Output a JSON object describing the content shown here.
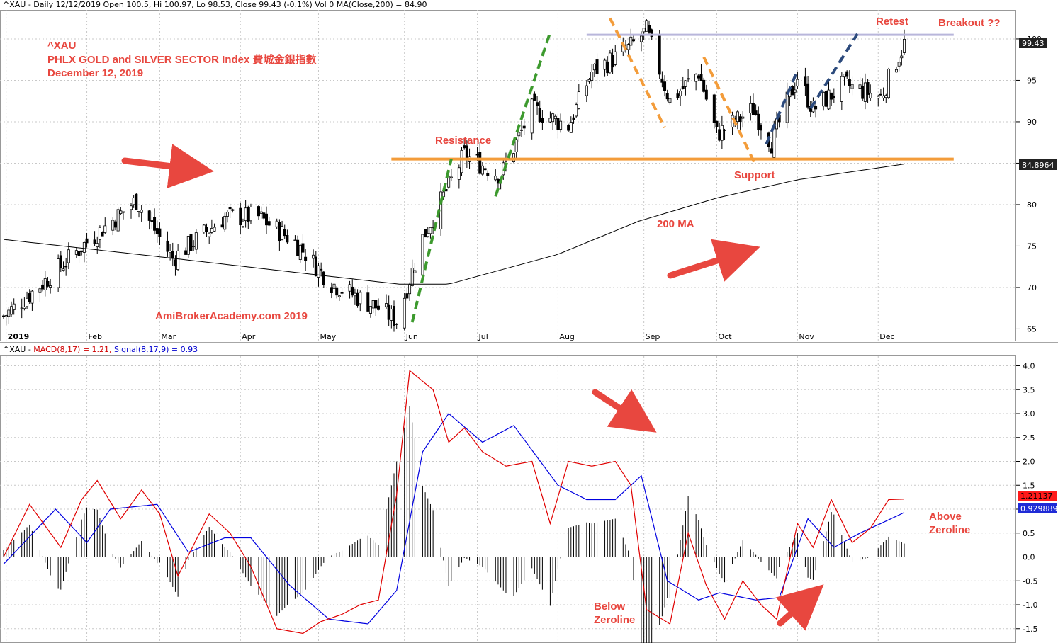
{
  "price_panel": {
    "header": "^XAU - Daily 12/12/2019 Open 100.5, Hi 100.97, Lo 98.53, Close 99.43 (-0.1%) Vol 0 MA(Close,200) = 84.90",
    "ticker": "^XAU",
    "index_name": "PHLX GOLD and SILVER SECTOR Index  費城金銀指數",
    "date": "December 12, 2019",
    "watermark": "AmiBrokerAcademy.com   2019",
    "last_close_label": "99.43",
    "ma_label": "84.8964"
  },
  "macd_panel": {
    "header_prefix": "^XAU - ",
    "header_macd": "MACD(8,17) = 1.21,",
    "header_signal": " Signal(8,17,9) = 0.93",
    "macd_label": "1.21137",
    "signal_label": "0.929889"
  },
  "annotations": {
    "resistance": "Resistance",
    "support": "Support",
    "ma200": "200 MA",
    "retest": "Retest",
    "breakout": "Breakout ??",
    "above_zeroline_1": "Above",
    "above_zeroline_2": "Zeroline",
    "below_zeroline_1": "Below",
    "below_zeroline_2": "Zeroline"
  },
  "colors": {
    "background": "#ffffff",
    "grid": "#c8c8c8",
    "annotation": "#e8473f",
    "resistance_line": "#f39c3a",
    "top_line": "#b9b6db",
    "green_trend": "#3d9a2e",
    "orange_trend": "#f39c3a",
    "navy_trend": "#2c4a7c",
    "macd": "#e00000",
    "signal": "#0000e0",
    "histogram": "#000000",
    "ma_line": "#000000"
  },
  "chart_data": [
    {
      "type": "candlestick",
      "title": "",
      "y_axis_ticks": [
        65,
        70,
        75,
        80,
        85,
        90,
        95,
        100
      ],
      "ylim": [
        63.5,
        103.5
      ],
      "x_axis_labels": [
        "2019",
        "Feb",
        "Mar",
        "Apr",
        "May",
        "Jun",
        "Jul",
        "Aug",
        "Sep",
        "Oct",
        "Nov",
        "Dec"
      ],
      "series_close_anchors": {
        "x": [
          "2018-12-31",
          "2019-01-15",
          "2019-02-01",
          "2019-02-20",
          "2019-03-06",
          "2019-03-26",
          "2019-04-08",
          "2019-04-22",
          "2019-05-06",
          "2019-05-24",
          "2019-05-31",
          "2019-06-10",
          "2019-06-26",
          "2019-07-10",
          "2019-07-22",
          "2019-08-05",
          "2019-08-14",
          "2019-08-27",
          "2019-09-04",
          "2019-09-13",
          "2019-09-24",
          "2019-10-01",
          "2019-10-15",
          "2019-10-22",
          "2019-11-01",
          "2019-11-07",
          "2019-11-19",
          "2019-12-03",
          "2019-12-12"
        ],
        "y": [
          66.5,
          70.5,
          75.5,
          80.5,
          73.5,
          78.5,
          78.5,
          75.5,
          70.5,
          67.5,
          66.0,
          76.0,
          86.0,
          83.5,
          91.5,
          89.5,
          96.0,
          98.5,
          101.0,
          92.5,
          96.0,
          88.5,
          91.5,
          87.5,
          95.5,
          91.5,
          94.5,
          93.0,
          99.43
        ]
      },
      "moving_average_200": {
        "x": [
          "2018-12-31",
          "2019-03-01",
          "2019-05-15",
          "2019-06-01",
          "2019-06-20",
          "2019-08-01",
          "2019-09-01",
          "2019-10-01",
          "2019-11-01",
          "2019-12-12"
        ],
        "y": [
          75.8,
          73.7,
          71.0,
          70.4,
          70.4,
          74.0,
          78.0,
          80.8,
          83.0,
          84.9
        ]
      },
      "horizontal_lines": [
        {
          "label": "Resistance",
          "value": 85.5,
          "from": "2019-05-29",
          "to": "2019-12-31"
        },
        {
          "label": "",
          "value": 100.5,
          "from": "2019-08-12",
          "to": "2019-12-31"
        }
      ]
    },
    {
      "type": "line",
      "title": "",
      "y_axis_ticks": [
        -1.5,
        -1.0,
        -0.5,
        0.0,
        0.5,
        1.0,
        1.5,
        2.0,
        2.5,
        3.0,
        3.5,
        4.0
      ],
      "ylim": [
        -1.8,
        4.2
      ],
      "series": [
        {
          "name": "MACD(8,17)",
          "x": [
            "2018-12-31",
            "2019-01-10",
            "2019-01-22",
            "2019-01-30",
            "2019-02-05",
            "2019-02-14",
            "2019-02-22",
            "2019-03-01",
            "2019-03-08",
            "2019-03-20",
            "2019-03-28",
            "2019-04-05",
            "2019-04-15",
            "2019-04-25",
            "2019-05-02",
            "2019-05-10",
            "2019-05-17",
            "2019-05-24",
            "2019-05-31",
            "2019-06-05",
            "2019-06-14",
            "2019-06-20",
            "2019-06-26",
            "2019-07-03",
            "2019-07-12",
            "2019-07-22",
            "2019-07-29",
            "2019-08-05",
            "2019-08-14",
            "2019-08-23",
            "2019-08-29",
            "2019-09-04",
            "2019-09-13",
            "2019-09-20",
            "2019-09-27",
            "2019-10-04",
            "2019-10-11",
            "2019-10-18",
            "2019-10-24",
            "2019-11-01",
            "2019-11-07",
            "2019-11-14",
            "2019-11-22",
            "2019-11-29",
            "2019-12-06",
            "2019-12-12"
          ],
          "y": [
            0.0,
            1.1,
            0.2,
            1.2,
            1.6,
            0.8,
            1.4,
            0.9,
            -0.4,
            0.9,
            0.5,
            -0.2,
            -1.5,
            -1.6,
            -1.35,
            -1.2,
            -1.0,
            -0.9,
            1.3,
            3.9,
            3.5,
            2.4,
            2.7,
            2.2,
            1.9,
            2.0,
            0.7,
            2.0,
            1.9,
            2.0,
            1.5,
            -1.1,
            -1.4,
            0.5,
            -0.6,
            -1.3,
            -0.5,
            -1.0,
            -1.3,
            0.7,
            0.2,
            1.2,
            0.3,
            0.6,
            1.2,
            1.21
          ]
        },
        {
          "name": "Signal(8,17,9)",
          "x": [
            "2018-12-31",
            "2019-01-20",
            "2019-02-01",
            "2019-02-10",
            "2019-02-28",
            "2019-03-12",
            "2019-03-26",
            "2019-04-05",
            "2019-04-20",
            "2019-05-05",
            "2019-05-20",
            "2019-05-31",
            "2019-06-10",
            "2019-06-20",
            "2019-07-03",
            "2019-07-15",
            "2019-08-01",
            "2019-08-12",
            "2019-08-23",
            "2019-09-02",
            "2019-09-12",
            "2019-09-24",
            "2019-10-02",
            "2019-10-16",
            "2019-10-25",
            "2019-11-05",
            "2019-11-15",
            "2019-11-25",
            "2019-12-03",
            "2019-12-12"
          ],
          "y": [
            -0.15,
            1.0,
            0.3,
            1.0,
            1.1,
            0.1,
            0.4,
            0.4,
            -0.6,
            -1.3,
            -1.4,
            -0.7,
            2.2,
            3.0,
            2.4,
            2.75,
            1.5,
            1.2,
            1.2,
            1.7,
            -0.5,
            -0.9,
            -0.75,
            -0.9,
            -0.85,
            0.8,
            0.2,
            0.5,
            0.7,
            0.93
          ]
        }
      ]
    }
  ]
}
